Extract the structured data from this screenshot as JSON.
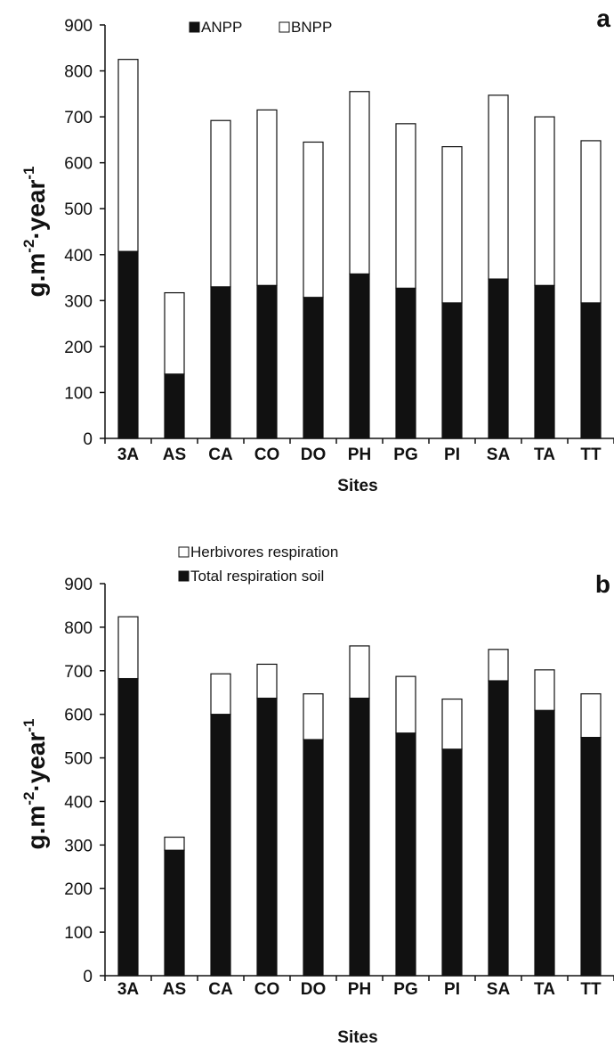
{
  "chart_data": [
    {
      "type": "bar",
      "stacked": true,
      "panel_label": "a",
      "categories": [
        "3A",
        "AS",
        "CA",
        "CO",
        "DO",
        "PH",
        "PG",
        "PI",
        "SA",
        "TA",
        "TT"
      ],
      "series": [
        {
          "name": "ANPP",
          "color": "#111111",
          "values": [
            407,
            140,
            330,
            333,
            307,
            358,
            327,
            295,
            347,
            333,
            295
          ]
        },
        {
          "name": "BNPP",
          "color": "#ffffff",
          "values": [
            418,
            177,
            362,
            382,
            338,
            397,
            358,
            340,
            400,
            367,
            353
          ]
        }
      ],
      "xlabel": "Sites",
      "ylabel": {
        "main": "g.m",
        "sup1": "-2",
        "mid": "·year",
        "sup2": "-1"
      },
      "ylim": [
        0,
        900
      ],
      "yticks": [
        0,
        100,
        200,
        300,
        400,
        500,
        600,
        700,
        800,
        900
      ],
      "grid": false,
      "legend_position": "top-center"
    },
    {
      "type": "bar",
      "stacked": true,
      "panel_label": "b",
      "categories": [
        "3A",
        "AS",
        "CA",
        "CO",
        "DO",
        "PH",
        "PG",
        "PI",
        "SA",
        "TA",
        "TT"
      ],
      "series": [
        {
          "name": "Total respiration soil",
          "color": "#111111",
          "values": [
            682,
            288,
            600,
            637,
            542,
            637,
            557,
            520,
            677,
            609,
            547
          ]
        },
        {
          "name": "Herbivores respiration",
          "color": "#ffffff",
          "values": [
            142,
            30,
            93,
            78,
            105,
            120,
            130,
            115,
            72,
            93,
            100
          ]
        }
      ],
      "legend_order": [
        "Herbivores respiration",
        "Total respiration soil"
      ],
      "xlabel": "Sites",
      "ylabel": {
        "main": "g.m",
        "sup1": "-2",
        "mid": "·year",
        "sup2": "-1"
      },
      "ylim": [
        0,
        900
      ],
      "yticks": [
        0,
        100,
        200,
        300,
        400,
        500,
        600,
        700,
        800,
        900
      ],
      "grid": false,
      "legend_position": "top-left"
    }
  ]
}
